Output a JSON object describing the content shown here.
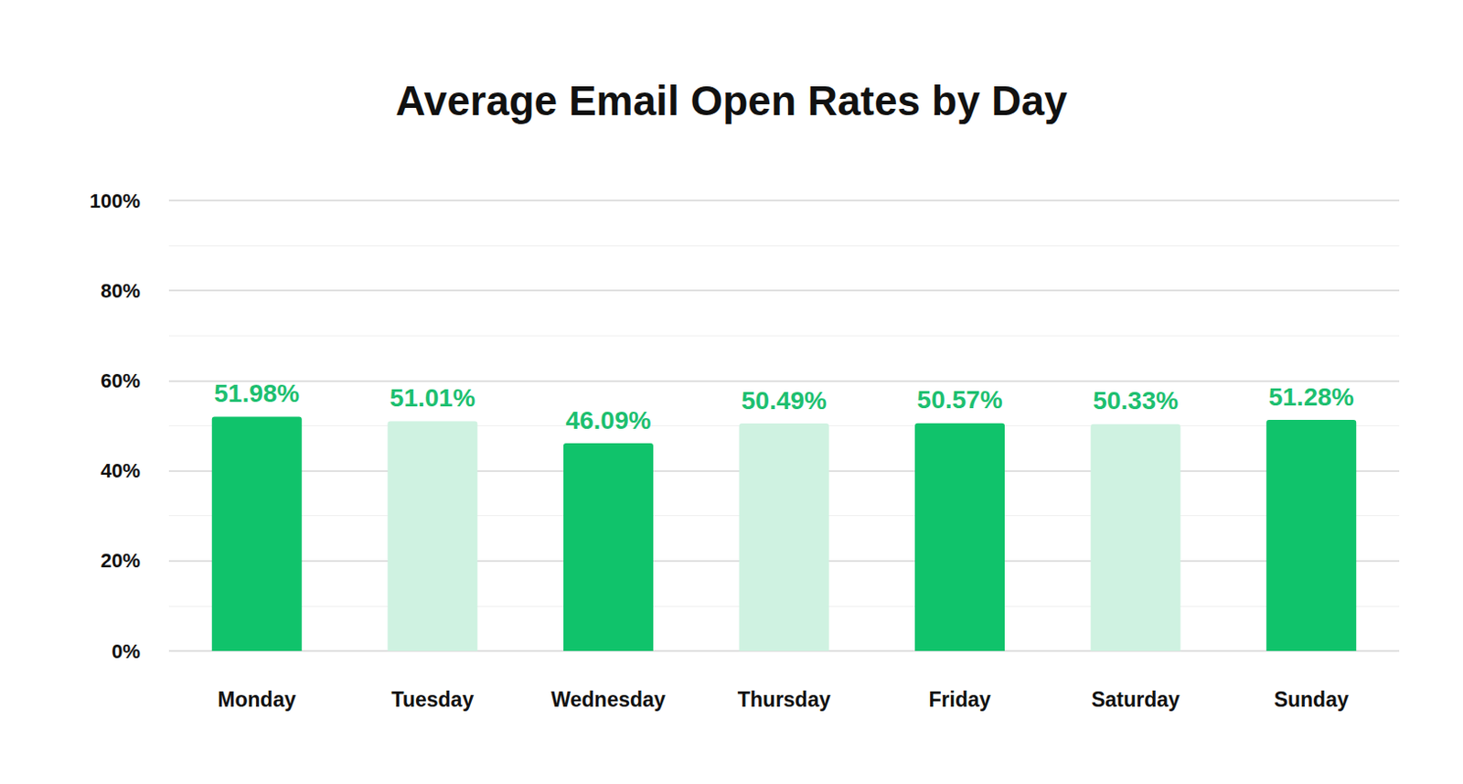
{
  "chart_data": {
    "type": "bar",
    "title": "Average Email Open Rates by Day",
    "categories": [
      "Monday",
      "Tuesday",
      "Wednesday",
      "Thursday",
      "Friday",
      "Saturday",
      "Sunday"
    ],
    "values": [
      51.98,
      51.01,
      46.09,
      50.49,
      50.57,
      50.33,
      51.28
    ],
    "value_labels": [
      "51.98%",
      "51.01%",
      "46.09%",
      "50.49%",
      "50.57%",
      "50.33%",
      "51.28%"
    ],
    "colors": [
      "#10c36b",
      "#cff2e1",
      "#10c36b",
      "#cff2e1",
      "#10c36b",
      "#cff2e1",
      "#10c36b"
    ],
    "ylim": [
      0,
      100
    ],
    "yticks": [
      {
        "value": 0,
        "label": "0%"
      },
      {
        "value": 20,
        "label": "20%"
      },
      {
        "value": 40,
        "label": "40%"
      },
      {
        "value": 60,
        "label": "60%"
      },
      {
        "value": 80,
        "label": "80%"
      },
      {
        "value": 100,
        "label": "100%"
      }
    ],
    "grid": true,
    "data_labels": true
  }
}
